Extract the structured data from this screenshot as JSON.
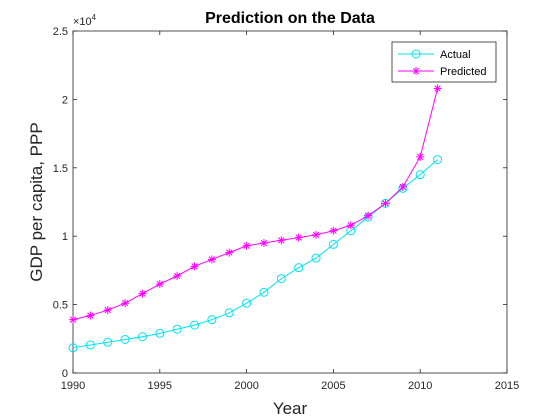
{
  "chart_data": {
    "type": "line",
    "title": "Prediction on the Data",
    "xlabel": "Year",
    "ylabel": "GDP per capita, PPP",
    "y_exponent_label": "×10^4",
    "y_exponent_base": "×10",
    "y_exponent_power": "4",
    "xlim": [
      1990,
      2015
    ],
    "ylim": [
      0,
      25000
    ],
    "x_ticks": [
      1990,
      1995,
      2000,
      2005,
      2010,
      2015
    ],
    "x_tick_labels": [
      "1990",
      "1995",
      "2000",
      "2005",
      "2010",
      "2015"
    ],
    "y_ticks": [
      0,
      5000,
      10000,
      15000,
      20000,
      25000
    ],
    "y_tick_labels": [
      "0",
      "0.5",
      "1",
      "1.5",
      "2",
      "2.5"
    ],
    "grid": false,
    "legend_position": "top-right",
    "x": [
      1990,
      1991,
      1992,
      1993,
      1994,
      1995,
      1996,
      1997,
      1998,
      1999,
      2000,
      2001,
      2002,
      2003,
      2004,
      2005,
      2006,
      2007,
      2008,
      2009,
      2010,
      2011
    ],
    "series": [
      {
        "name": "Actual",
        "color": "#00e5ee",
        "marker": "circle",
        "values": [
          1850,
          2050,
          2250,
          2450,
          2650,
          2900,
          3200,
          3500,
          3900,
          4400,
          5100,
          5900,
          6900,
          7700,
          8400,
          9400,
          10400,
          11400,
          12400,
          13500,
          14500,
          15600
        ]
      },
      {
        "name": "Predicted",
        "color": "#ff00ff",
        "marker": "asterisk",
        "values": [
          3900,
          4200,
          4600,
          5100,
          5800,
          6500,
          7100,
          7800,
          8300,
          8800,
          9300,
          9500,
          9700,
          9900,
          10100,
          10400,
          10800,
          11500,
          12400,
          13600,
          15800,
          20800
        ]
      }
    ]
  }
}
